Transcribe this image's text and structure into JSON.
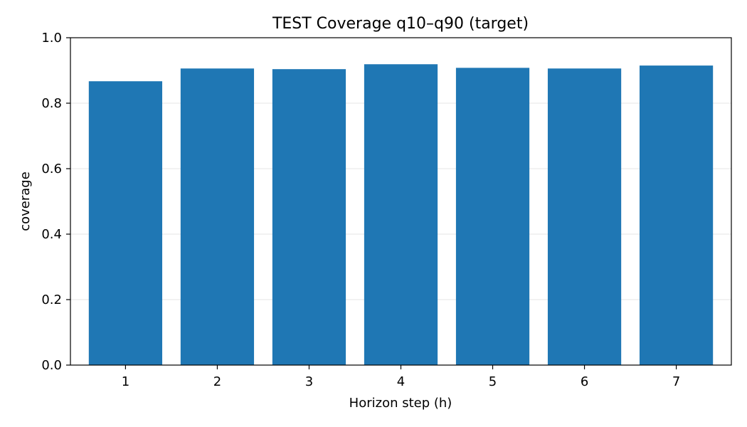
{
  "chart_data": {
    "type": "bar",
    "title": "TEST Coverage q10–q90 (target)",
    "xlabel": "Horizon step (h)",
    "ylabel": "coverage",
    "categories": [
      "1",
      "2",
      "3",
      "4",
      "5",
      "6",
      "7"
    ],
    "values": [
      0.867,
      0.906,
      0.904,
      0.919,
      0.908,
      0.906,
      0.915
    ],
    "ylim": [
      0,
      1.0
    ],
    "yticks": [
      "0.0",
      "0.2",
      "0.4",
      "0.6",
      "0.8",
      "1.0"
    ],
    "grid": "horizontal",
    "bar_color": "#1f77b4",
    "grid_color": "#e6e6e6"
  }
}
